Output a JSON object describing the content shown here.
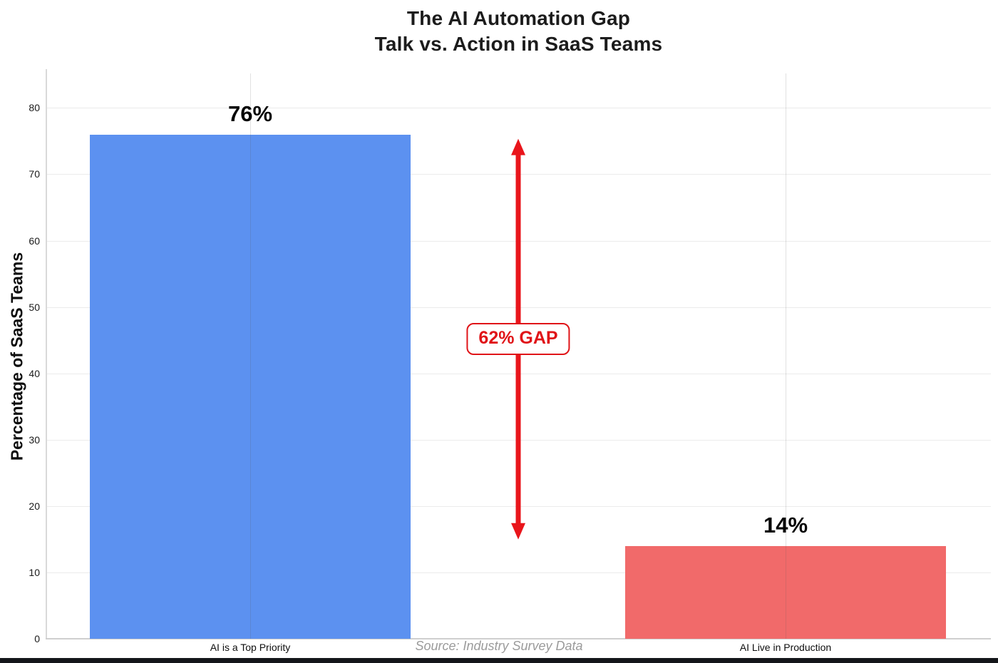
{
  "title": {
    "line1": "The AI Automation Gap",
    "line2": "Talk vs. Action in SaaS Teams"
  },
  "chart_data": {
    "type": "bar",
    "categories": [
      "AI is a Top Priority",
      "AI Live in Production"
    ],
    "values": [
      76,
      14
    ],
    "value_labels": [
      "76%",
      "14%"
    ],
    "bar_colors": [
      "#5c91f0",
      "#f16a6a"
    ],
    "ylabel": "Percentage of SaaS Teams",
    "yticks": [
      0,
      10,
      20,
      30,
      40,
      50,
      60,
      70,
      80
    ],
    "ylim": [
      0,
      85.2
    ],
    "grid": "horizontal gridlines + vertical line at each bar center",
    "legend": "none",
    "annotations": {
      "gap_label": "62% GAP",
      "gap_value": 62,
      "gap_arrow_color": "#e9151b",
      "gap_label_color": "#e01418",
      "source": "Source: Industry Survey Data",
      "source_color": "#9b9b9b"
    }
  }
}
